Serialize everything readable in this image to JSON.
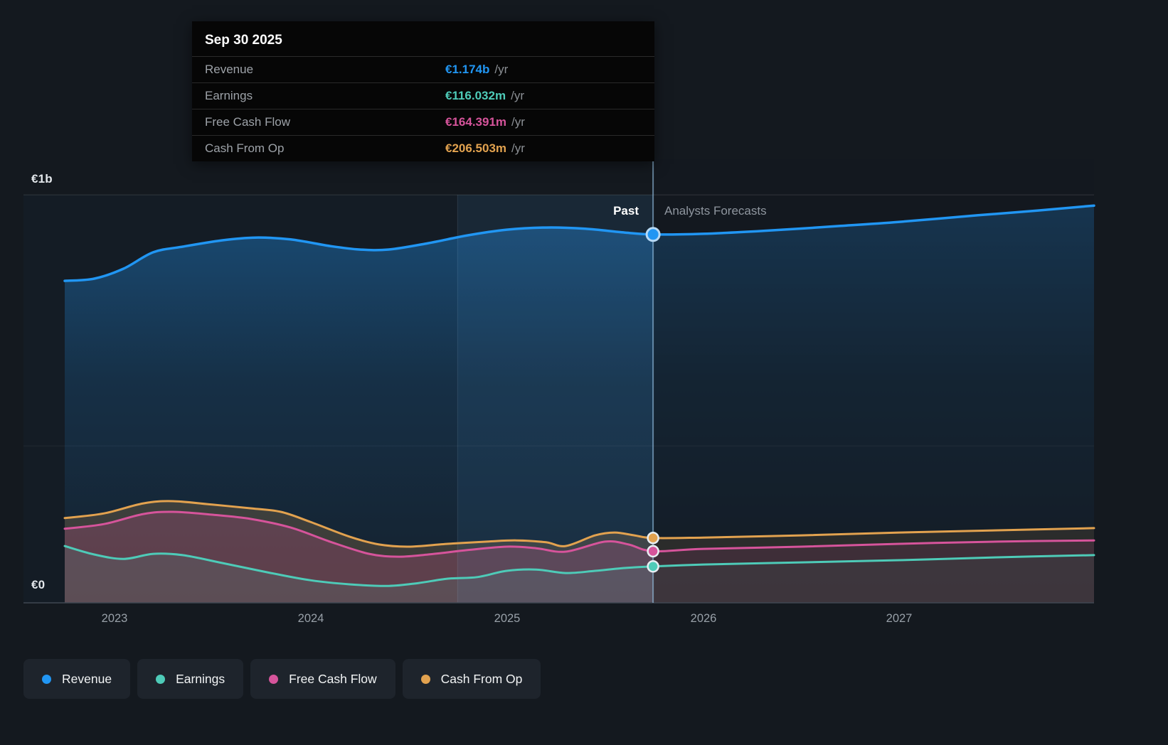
{
  "axis": {
    "y_top_label": "€1b",
    "y_bottom_label": "€0",
    "x_ticks": [
      "2023",
      "2024",
      "2025",
      "2026",
      "2027"
    ]
  },
  "annotations": {
    "past": "Past",
    "forecast": "Analysts Forecasts"
  },
  "tooltip": {
    "date": "Sep 30 2025",
    "rows": [
      {
        "label": "Revenue",
        "value": "€1.174b",
        "suffix": "/yr",
        "color": "#2196f3"
      },
      {
        "label": "Earnings",
        "value": "€116.032m",
        "suffix": "/yr",
        "color": "#4ecbb8"
      },
      {
        "label": "Free Cash Flow",
        "value": "€164.391m",
        "suffix": "/yr",
        "color": "#d6549b"
      },
      {
        "label": "Cash From Op",
        "value": "€206.503m",
        "suffix": "/yr",
        "color": "#e2a24f"
      }
    ]
  },
  "legend": [
    {
      "label": "Revenue",
      "color": "#2196f3"
    },
    {
      "label": "Earnings",
      "color": "#4ecbb8"
    },
    {
      "label": "Free Cash Flow",
      "color": "#d6549b"
    },
    {
      "label": "Cash From Op",
      "color": "#e2a24f"
    }
  ],
  "colors": {
    "background": "#14191f",
    "panel": "#1e242c",
    "divider_line": "#96c3e6",
    "grid": "#ffffff"
  },
  "chart_data": {
    "type": "area",
    "title": "Past performance and analysts forecasts for Revenue, Earnings, Free Cash Flow and Cash From Op",
    "x_axis": {
      "ticks": [
        2023,
        2024,
        2025,
        2026,
        2027
      ],
      "range": [
        2022.54,
        2027.99
      ]
    },
    "y_axis": {
      "labels": [
        "€1b",
        "€0"
      ],
      "range": [
        0,
        1.4
      ],
      "unit": "EUR billions"
    },
    "gridlines": [
      1.3,
      0.5
    ],
    "grid": "on",
    "legend_position": "bottom-left",
    "past_until": 2025.745,
    "highlight_band": [
      2024.75,
      2025.745
    ],
    "marker": {
      "date": "Sep 30 2025",
      "values": {
        "Revenue": "€1.174b /yr",
        "Earnings": "€116.032m /yr",
        "Free Cash Flow": "€164.391m /yr",
        "Cash From Op": "€206.503m /yr"
      }
    },
    "series": [
      {
        "name": "Revenue",
        "color": "#2196f3",
        "stroke_width": 3.5,
        "fill": "gradient",
        "points": [
          [
            2022.75,
            1.026
          ],
          [
            2022.9,
            1.033
          ],
          [
            2023.05,
            1.065
          ],
          [
            2023.2,
            1.117
          ],
          [
            2023.35,
            1.135
          ],
          [
            2023.55,
            1.155
          ],
          [
            2023.72,
            1.164
          ],
          [
            2023.9,
            1.158
          ],
          [
            2024.1,
            1.137
          ],
          [
            2024.25,
            1.126
          ],
          [
            2024.4,
            1.126
          ],
          [
            2024.6,
            1.146
          ],
          [
            2024.8,
            1.171
          ],
          [
            2025.0,
            1.189
          ],
          [
            2025.2,
            1.196
          ],
          [
            2025.4,
            1.192
          ],
          [
            2025.6,
            1.18
          ],
          [
            2025.745,
            1.174
          ],
          [
            2026.0,
            1.176
          ],
          [
            2026.3,
            1.185
          ],
          [
            2026.7,
            1.201
          ],
          [
            2027.0,
            1.214
          ],
          [
            2027.4,
            1.235
          ],
          [
            2027.7,
            1.25
          ],
          [
            2027.99,
            1.266
          ]
        ]
      },
      {
        "name": "Cash From Op",
        "color": "#e2a24f",
        "stroke_width": 3,
        "fill": "rgba(226,162,79,0.20)",
        "points": [
          [
            2022.75,
            0.27
          ],
          [
            2022.95,
            0.285
          ],
          [
            2023.15,
            0.317
          ],
          [
            2023.3,
            0.324
          ],
          [
            2023.5,
            0.313
          ],
          [
            2023.7,
            0.301
          ],
          [
            2023.85,
            0.29
          ],
          [
            2024.0,
            0.258
          ],
          [
            2024.2,
            0.211
          ],
          [
            2024.35,
            0.186
          ],
          [
            2024.5,
            0.179
          ],
          [
            2024.7,
            0.188
          ],
          [
            2024.9,
            0.195
          ],
          [
            2025.05,
            0.199
          ],
          [
            2025.2,
            0.193
          ],
          [
            2025.3,
            0.181
          ],
          [
            2025.45,
            0.215
          ],
          [
            2025.55,
            0.224
          ],
          [
            2025.65,
            0.215
          ],
          [
            2025.745,
            0.2065
          ],
          [
            2026.0,
            0.208
          ],
          [
            2026.5,
            0.215
          ],
          [
            2027.0,
            0.224
          ],
          [
            2027.5,
            0.231
          ],
          [
            2027.99,
            0.238
          ]
        ]
      },
      {
        "name": "Free Cash Flow",
        "color": "#d6549b",
        "stroke_width": 3,
        "fill": "rgba(214,84,155,0.22)",
        "points": [
          [
            2022.75,
            0.236
          ],
          [
            2022.95,
            0.251
          ],
          [
            2023.15,
            0.283
          ],
          [
            2023.3,
            0.29
          ],
          [
            2023.5,
            0.281
          ],
          [
            2023.7,
            0.267
          ],
          [
            2023.9,
            0.24
          ],
          [
            2024.1,
            0.195
          ],
          [
            2024.3,
            0.156
          ],
          [
            2024.45,
            0.147
          ],
          [
            2024.6,
            0.154
          ],
          [
            2024.8,
            0.168
          ],
          [
            2025.0,
            0.179
          ],
          [
            2025.15,
            0.174
          ],
          [
            2025.3,
            0.163
          ],
          [
            2025.5,
            0.195
          ],
          [
            2025.62,
            0.186
          ],
          [
            2025.745,
            0.1644
          ],
          [
            2026.0,
            0.172
          ],
          [
            2026.5,
            0.179
          ],
          [
            2027.0,
            0.188
          ],
          [
            2027.5,
            0.195
          ],
          [
            2027.99,
            0.199
          ]
        ]
      },
      {
        "name": "Earnings",
        "color": "#4ecbb8",
        "stroke_width": 3,
        "fill": "rgba(78,203,184,0.10)",
        "points": [
          [
            2022.75,
            0.181
          ],
          [
            2022.9,
            0.154
          ],
          [
            2023.05,
            0.14
          ],
          [
            2023.2,
            0.156
          ],
          [
            2023.35,
            0.152
          ],
          [
            2023.55,
            0.127
          ],
          [
            2023.8,
            0.095
          ],
          [
            2024.0,
            0.072
          ],
          [
            2024.2,
            0.059
          ],
          [
            2024.4,
            0.054
          ],
          [
            2024.55,
            0.063
          ],
          [
            2024.7,
            0.077
          ],
          [
            2024.85,
            0.082
          ],
          [
            2025.0,
            0.102
          ],
          [
            2025.15,
            0.106
          ],
          [
            2025.3,
            0.095
          ],
          [
            2025.45,
            0.102
          ],
          [
            2025.6,
            0.111
          ],
          [
            2025.745,
            0.116
          ],
          [
            2026.0,
            0.122
          ],
          [
            2026.5,
            0.129
          ],
          [
            2027.0,
            0.136
          ],
          [
            2027.5,
            0.145
          ],
          [
            2027.99,
            0.152
          ]
        ]
      }
    ]
  }
}
